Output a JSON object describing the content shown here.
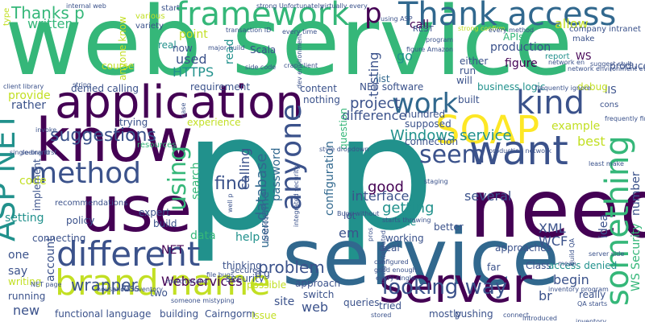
{
  "palette": {
    "purple": "#440154",
    "indigo": "#3b528b",
    "blue": "#31688e",
    "teal": "#21918c",
    "green": "#35b779",
    "lime": "#5ec962",
    "yellow": "#c2df23",
    "bright": "#fde725"
  },
  "words": [
    {
      "text": "web service",
      "color": "#35b779"
    },
    {
      "text": "p p",
      "color": "#21918c"
    },
    {
      "text": "service",
      "color": "#31688e"
    },
    {
      "text": "need",
      "color": "#440154"
    },
    {
      "text": "use",
      "color": "#440154"
    },
    {
      "text": "know",
      "color": "#440154"
    },
    {
      "text": "application",
      "color": "#440154"
    },
    {
      "text": "Thank access",
      "color": "#31688e"
    },
    {
      "text": "framework",
      "color": "#35b779"
    },
    {
      "text": "SOAP",
      "color": "#fde725"
    },
    {
      "text": "want",
      "color": "#3b528b"
    },
    {
      "text": "server",
      "color": "#440154"
    },
    {
      "text": "brand name",
      "color": "#c2df23"
    },
    {
      "text": "different",
      "color": "#3b528b"
    },
    {
      "text": "method",
      "color": "#3b528b"
    },
    {
      "text": "kind",
      "color": "#3b528b"
    },
    {
      "text": "work",
      "color": "#31688e"
    },
    {
      "text": "ASP NET",
      "color": "#21918c"
    },
    {
      "text": "something",
      "color": "#35b779"
    },
    {
      "text": "anyone",
      "color": "#3b528b"
    },
    {
      "text": "seem",
      "color": "#3b528b"
    },
    {
      "text": "using",
      "color": "#35b779"
    },
    {
      "text": "Windows service",
      "color": "#21918c"
    },
    {
      "text": "suggestions",
      "color": "#3b528b"
    },
    {
      "text": "looking way",
      "color": "#3b528b"
    },
    {
      "text": "problem",
      "color": "#3b528b"
    },
    {
      "text": "Webservices",
      "color": "#440154"
    },
    {
      "text": "wrapper",
      "color": "#3b528b"
    },
    {
      "text": "p",
      "color": "#440154"
    },
    {
      "text": "Thanks p",
      "color": "#35b779"
    },
    {
      "text": "written",
      "color": "#35b779"
    },
    {
      "text": "project",
      "color": "#3b528b"
    },
    {
      "text": "difference",
      "color": "#3b528b"
    },
    {
      "text": "interface",
      "color": "#3b528b"
    },
    {
      "text": "several",
      "color": "#3b528b"
    },
    {
      "text": "testing",
      "color": "#3b528b"
    },
    {
      "text": "getting",
      "color": "#21918c"
    },
    {
      "text": "good",
      "color": "#440154"
    },
    {
      "text": "find",
      "color": "#3b528b"
    },
    {
      "text": "calling",
      "color": "#3b528b"
    },
    {
      "text": "database",
      "color": "#31688e"
    },
    {
      "text": "password",
      "color": "#31688e"
    },
    {
      "text": "username",
      "color": "#31688e"
    },
    {
      "text": "configuration",
      "color": "#31688e"
    },
    {
      "text": "XML",
      "color": "#3b528b"
    },
    {
      "text": "WCF",
      "color": "#3b528b"
    },
    {
      "text": "idea",
      "color": "#3b528b"
    },
    {
      "text": "WS Security",
      "color": "#35b779"
    },
    {
      "text": "begin",
      "color": "#3b528b"
    },
    {
      "text": "br",
      "color": "#3b528b"
    },
    {
      "text": "example",
      "color": "#c2df23"
    },
    {
      "text": "best",
      "color": "#c2df23"
    },
    {
      "text": "number",
      "color": "#3b528b"
    },
    {
      "text": "used",
      "color": "#3b528b"
    },
    {
      "text": "HTTPS",
      "color": "#21918c"
    },
    {
      "text": "point",
      "color": "#c2df23"
    },
    {
      "text": "read",
      "color": "#21918c"
    },
    {
      "text": "go",
      "color": "#21918c"
    },
    {
      "text": "provide",
      "color": "#c2df23"
    },
    {
      "text": "rather",
      "color": "#3b528b"
    },
    {
      "text": "code",
      "color": "#c2df23"
    },
    {
      "text": "one",
      "color": "#3b528b"
    },
    {
      "text": "say",
      "color": "#3b528b"
    },
    {
      "text": "account",
      "color": "#3b528b"
    },
    {
      "text": "new",
      "color": "#3b528b"
    },
    {
      "text": "site",
      "color": "#3b528b"
    },
    {
      "text": "web",
      "color": "#3b528b"
    },
    {
      "text": "data",
      "color": "#35b779"
    },
    {
      "text": "help",
      "color": "#21918c"
    },
    {
      "text": "NET",
      "color": "#440154"
    },
    {
      "text": "search",
      "color": "#35b779"
    },
    {
      "text": "em",
      "color": "#3b528b"
    },
    {
      "text": "setting",
      "color": "#21918c"
    },
    {
      "text": "real",
      "color": "#21918c"
    },
    {
      "text": "Scala",
      "color": "#3b528b"
    },
    {
      "text": "production",
      "color": "#3b528b"
    },
    {
      "text": "allow",
      "color": "#c2df23"
    },
    {
      "text": "call",
      "color": "#440154"
    },
    {
      "text": "APIs",
      "color": "#35b779"
    },
    {
      "text": "business logic",
      "color": "#21918c"
    },
    {
      "text": "NET software",
      "color": "#3b528b"
    },
    {
      "text": "list",
      "color": "#31688e"
    },
    {
      "text": "figure",
      "color": "#440154"
    },
    {
      "text": "run",
      "color": "#3b528b"
    },
    {
      "text": "will",
      "color": "#3b528b"
    },
    {
      "text": "IIS",
      "color": "#3b528b"
    },
    {
      "text": "content",
      "color": "#3b528b"
    },
    {
      "text": "requirement",
      "color": "#3b528b"
    },
    {
      "text": "now",
      "color": "#3b528b"
    },
    {
      "text": "course",
      "color": "#c2df23"
    },
    {
      "text": "trying",
      "color": "#3b528b"
    },
    {
      "text": "experience",
      "color": "#c2df23"
    },
    {
      "text": "question",
      "color": "#35b779"
    },
    {
      "text": "nothing",
      "color": "#3b528b"
    },
    {
      "text": "lot",
      "color": "#3b528b"
    },
    {
      "text": "create",
      "color": "#21918c"
    },
    {
      "text": "working",
      "color": "#3b528b"
    },
    {
      "text": "connecting",
      "color": "#3b528b"
    },
    {
      "text": "thinking",
      "color": "#3b528b"
    },
    {
      "text": "build",
      "color": "#3b528b"
    },
    {
      "text": "expert",
      "color": "#3b528b"
    },
    {
      "text": "recommendations",
      "color": "#3b528b"
    },
    {
      "text": "implement",
      "color": "#3b528b"
    },
    {
      "text": "policy",
      "color": "#3b528b"
    },
    {
      "text": "security",
      "color": "#3b528b"
    },
    {
      "text": "possible",
      "color": "#c2df23"
    },
    {
      "text": "e g",
      "color": "#3b528b"
    },
    {
      "text": "secure",
      "color": "#3b528b"
    },
    {
      "text": "switch",
      "color": "#3b528b"
    },
    {
      "text": "queries",
      "color": "#3b528b"
    },
    {
      "text": "mostly",
      "color": "#3b528b"
    },
    {
      "text": "pushing",
      "color": "#3b528b"
    },
    {
      "text": "Cairngorm",
      "color": "#3b528b"
    },
    {
      "text": "building",
      "color": "#3b528b"
    },
    {
      "text": "functional language",
      "color": "#3b528b"
    },
    {
      "text": "running",
      "color": "#3b528b"
    },
    {
      "text": "writing",
      "color": "#c2df23"
    },
    {
      "text": "two",
      "color": "#3b528b"
    },
    {
      "text": "loss",
      "color": "#3b528b"
    },
    {
      "text": "Issue",
      "color": "#c2df23"
    },
    {
      "text": "tried",
      "color": "#3b528b"
    },
    {
      "text": "really",
      "color": "#3b528b"
    },
    {
      "text": "far",
      "color": "#3b528b"
    },
    {
      "text": "supposed",
      "color": "#3b528b"
    },
    {
      "text": "hundred",
      "color": "#3b528b"
    },
    {
      "text": "better",
      "color": "#3b528b"
    },
    {
      "text": "deal",
      "color": "#3b528b"
    },
    {
      "text": "approach",
      "color": "#3b528b"
    },
    {
      "text": "approaches",
      "color": "#3b528b"
    },
    {
      "text": "Class",
      "color": "#3b528b"
    },
    {
      "text": "access denied",
      "color": "#21918c"
    },
    {
      "text": "debug",
      "color": "#c2df23"
    },
    {
      "text": "cons",
      "color": "#3b528b"
    },
    {
      "text": "either",
      "color": "#3b528b"
    },
    {
      "text": "connection",
      "color": "#3b528b"
    },
    {
      "text": "built",
      "color": "#3b528b"
    },
    {
      "text": "denied calling",
      "color": "#3b528b"
    },
    {
      "text": "anyone know",
      "color": "#c2df23"
    },
    {
      "text": "start",
      "color": "#3b528b"
    },
    {
      "text": "various",
      "color": "#c2df23"
    },
    {
      "text": "variety",
      "color": "#3b528b"
    },
    {
      "text": "internal web",
      "color": "#3b528b"
    },
    {
      "text": "strong Unfortunately",
      "color": "#3b528b"
    },
    {
      "text": "virtually every",
      "color": "#3b528b"
    },
    {
      "text": "every time",
      "color": "#3b528b"
    },
    {
      "text": "REST",
      "color": "#3b528b"
    },
    {
      "text": "program",
      "color": "#3b528b"
    },
    {
      "text": "make",
      "color": "#3b528b"
    },
    {
      "text": "company intranet",
      "color": "#3b528b"
    },
    {
      "text": "produce",
      "color": "#3b528b"
    },
    {
      "text": "report",
      "color": "#21918c"
    },
    {
      "text": "WS",
      "color": "#440154"
    },
    {
      "text": "network en",
      "color": "#3b528b"
    },
    {
      "text": "type",
      "color": "#c2df23"
    },
    {
      "text": "resources",
      "color": "#35b779"
    },
    {
      "text": "client library",
      "color": "#3b528b"
    },
    {
      "text": "single brand",
      "color": "#3b528b"
    },
    {
      "text": "NET page",
      "color": "#3b528b"
    },
    {
      "text": "frequently ignore",
      "color": "#3b528b"
    },
    {
      "text": "frequently find",
      "color": "#3b528b"
    },
    {
      "text": "production network",
      "color": "#3b528b"
    },
    {
      "text": "least make",
      "color": "#3b528b"
    },
    {
      "text": "inventory program",
      "color": "#3b528b"
    },
    {
      "text": "introduced",
      "color": "#3b528b"
    },
    {
      "text": "connect",
      "color": "#3b528b"
    },
    {
      "text": "configured",
      "color": "#3b528b"
    },
    {
      "text": "good enough",
      "color": "#3b528b"
    },
    {
      "text": "every single",
      "color": "#3b528b"
    },
    {
      "text": "stored",
      "color": "#3b528b"
    },
    {
      "text": "file bugs",
      "color": "#3b528b"
    },
    {
      "text": "someone mistyping",
      "color": "#3b528b"
    },
    {
      "text": "integrated security",
      "color": "#3b528b"
    },
    {
      "text": "protocol",
      "color": "#3b528b"
    },
    {
      "text": "well p",
      "color": "#3b528b"
    },
    {
      "text": "Bugs without",
      "color": "#3b528b"
    },
    {
      "text": "starts throwing",
      "color": "#3b528b"
    },
    {
      "text": "pros",
      "color": "#3b528b"
    },
    {
      "text": "staging",
      "color": "#3b528b"
    },
    {
      "text": "using integrated",
      "color": "#3b528b"
    },
    {
      "text": "transaction ID",
      "color": "#3b528b"
    },
    {
      "text": "major build",
      "color": "#3b528b"
    },
    {
      "text": "side code",
      "color": "#3b528b"
    },
    {
      "text": "crap client",
      "color": "#3b528b"
    },
    {
      "text": "dev environment",
      "color": "#3b528b"
    },
    {
      "text": "case",
      "color": "#3b528b"
    },
    {
      "text": "suggest style",
      "color": "#3b528b"
    },
    {
      "text": "figure Amazon",
      "color": "#3b528b"
    },
    {
      "text": "strong confirm",
      "color": "#c2df23"
    },
    {
      "text": "using ASP",
      "color": "#3b528b"
    },
    {
      "text": "every method",
      "color": "#3b528b"
    },
    {
      "text": "style dropdown",
      "color": "#3b528b"
    },
    {
      "text": "server side",
      "color": "#3b528b"
    },
    {
      "text": "mean",
      "color": "#3b528b"
    },
    {
      "text": "inventory",
      "color": "#3b528b"
    },
    {
      "text": "QA starts",
      "color": "#3b528b"
    },
    {
      "text": "seeing first",
      "color": "#3b528b"
    },
    {
      "text": "invoke",
      "color": "#3b528b"
    },
    {
      "text": "match brand",
      "color": "#3b528b"
    },
    {
      "text": "build QA",
      "color": "#3b528b"
    },
    {
      "text": "network environment everything",
      "color": "#3b528b"
    },
    {
      "text": "household inventory",
      "color": "#3b528b"
    },
    {
      "text": "string",
      "color": "#3b528b"
    }
  ]
}
